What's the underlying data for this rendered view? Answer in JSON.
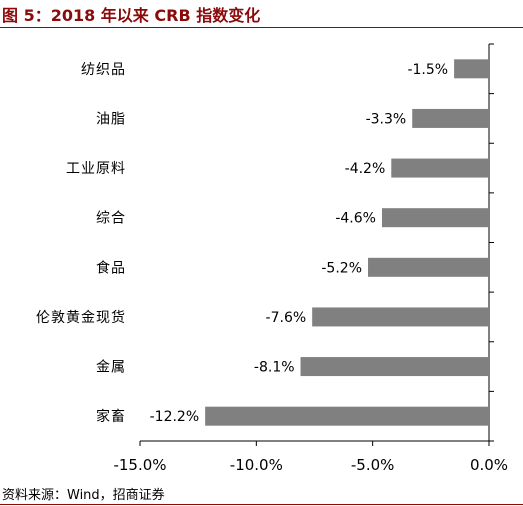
{
  "figure": {
    "title": "图 5：2018 年以来 CRB 指数变化",
    "source": "资料来源：Wind，招商证券"
  },
  "chart_data": {
    "type": "bar",
    "orientation": "horizontal",
    "categories": [
      "纺织品",
      "油脂",
      "工业原料",
      "综合",
      "食品",
      "伦敦黄金现货",
      "金属",
      "家畜"
    ],
    "values": [
      -1.5,
      -3.3,
      -4.2,
      -4.6,
      -5.2,
      -7.6,
      -8.1,
      -12.2
    ],
    "data_labels": [
      "-1.5%",
      "-3.3%",
      "-4.2%",
      "-4.6%",
      "-5.2%",
      "-7.6%",
      "-8.1%",
      "-12.2%"
    ],
    "xlim": [
      -15,
      0
    ],
    "x_ticks": [
      -15,
      -10,
      -5,
      0
    ],
    "x_tick_labels": [
      "-15.0%",
      "-10.0%",
      "-5.0%",
      "0.0%"
    ],
    "bar_color": "#808080",
    "grid": false,
    "legend": "none"
  }
}
